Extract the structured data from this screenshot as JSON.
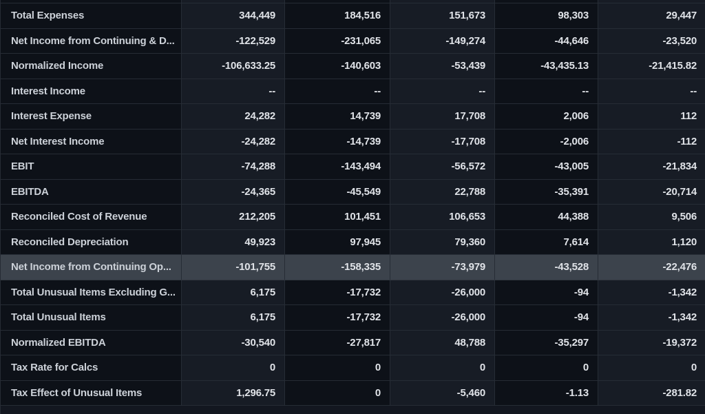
{
  "table": {
    "highlight_color": "#3c434c",
    "colors": {
      "cell_dark": "#0d1118",
      "cell_light": "#171c25",
      "divider": "#262c35",
      "label_text": "#ccd1d8",
      "value_text": "#e0e3e8"
    },
    "rows": [
      {
        "label": "Total Expenses",
        "values": [
          "344,449",
          "184,516",
          "151,673",
          "98,303",
          "29,447"
        ],
        "highlighted": false
      },
      {
        "label": "Net Income from Continuing & D...",
        "values": [
          "-122,529",
          "-231,065",
          "-149,274",
          "-44,646",
          "-23,520"
        ],
        "highlighted": false
      },
      {
        "label": "Normalized Income",
        "values": [
          "-106,633.25",
          "-140,603",
          "-53,439",
          "-43,435.13",
          "-21,415.82"
        ],
        "highlighted": false
      },
      {
        "label": "Interest Income",
        "values": [
          "--",
          "--",
          "--",
          "--",
          "--"
        ],
        "highlighted": false
      },
      {
        "label": "Interest Expense",
        "values": [
          "24,282",
          "14,739",
          "17,708",
          "2,006",
          "112"
        ],
        "highlighted": false
      },
      {
        "label": "Net Interest Income",
        "values": [
          "-24,282",
          "-14,739",
          "-17,708",
          "-2,006",
          "-112"
        ],
        "highlighted": false
      },
      {
        "label": "EBIT",
        "values": [
          "-74,288",
          "-143,494",
          "-56,572",
          "-43,005",
          "-21,834"
        ],
        "highlighted": false
      },
      {
        "label": "EBITDA",
        "values": [
          "-24,365",
          "-45,549",
          "22,788",
          "-35,391",
          "-20,714"
        ],
        "highlighted": false
      },
      {
        "label": "Reconciled Cost of Revenue",
        "values": [
          "212,205",
          "101,451",
          "106,653",
          "44,388",
          "9,506"
        ],
        "highlighted": false
      },
      {
        "label": "Reconciled Depreciation",
        "values": [
          "49,923",
          "97,945",
          "79,360",
          "7,614",
          "1,120"
        ],
        "highlighted": false
      },
      {
        "label": "Net Income from Continuing Op...",
        "values": [
          "-101,755",
          "-158,335",
          "-73,979",
          "-43,528",
          "-22,476"
        ],
        "highlighted": true
      },
      {
        "label": "Total Unusual Items Excluding G...",
        "values": [
          "6,175",
          "-17,732",
          "-26,000",
          "-94",
          "-1,342"
        ],
        "highlighted": false
      },
      {
        "label": "Total Unusual Items",
        "values": [
          "6,175",
          "-17,732",
          "-26,000",
          "-94",
          "-1,342"
        ],
        "highlighted": false
      },
      {
        "label": "Normalized EBITDA",
        "values": [
          "-30,540",
          "-27,817",
          "48,788",
          "-35,297",
          "-19,372"
        ],
        "highlighted": false
      },
      {
        "label": "Tax Rate for Calcs",
        "values": [
          "0",
          "0",
          "0",
          "0",
          "0"
        ],
        "highlighted": false
      },
      {
        "label": "Tax Effect of Unusual Items",
        "values": [
          "1,296.75",
          "0",
          "-5,460",
          "-1.13",
          "-281.82"
        ],
        "highlighted": false
      }
    ]
  }
}
